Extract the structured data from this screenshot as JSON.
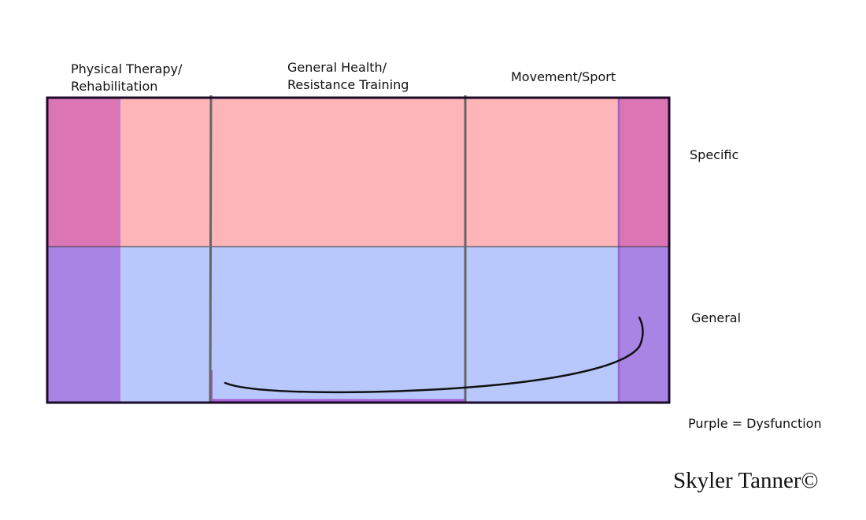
{
  "columns": [
    {
      "line1": "Physical Therapy/",
      "line2": "Rehabilitation"
    },
    {
      "line1": "General Health/",
      "line2": "Resistance Training"
    },
    {
      "line1": "Movement/Sport",
      "line2": ""
    }
  ],
  "rows": {
    "top": "Specific",
    "bottom": "General"
  },
  "legend": "Purple = Dysfunction",
  "signature": "Skyler Tanner©",
  "colors": {
    "specific": "#fdb5b7",
    "general": "#b8c8fc",
    "dysfunction_specific": "#db75b3",
    "dysfunction_general": "#a885e5",
    "dysfunction_border": "#a45fd0",
    "frame": "#1b0b2a",
    "divider": "#666666"
  }
}
